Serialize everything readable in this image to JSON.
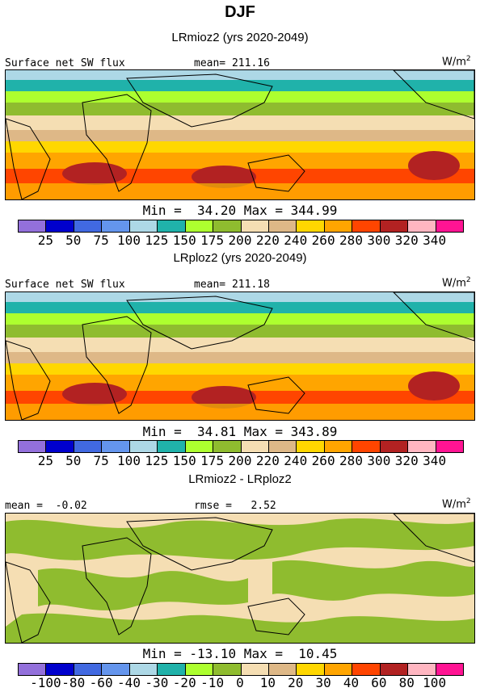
{
  "title": "DJF",
  "panels": [
    {
      "title": "LRmioz2 (yrs 2020-2049)",
      "label_left": "Surface net SW flux",
      "label_mid": "mean= 211.16",
      "unit": "W/m",
      "unit_exp": "2",
      "minmax": "Min =  34.20 Max = 344.99",
      "colorbar_ticks": [
        "25",
        "50",
        "75",
        "100",
        "125",
        "150",
        "175",
        "200",
        "220",
        "240",
        "260",
        "280",
        "300",
        "320",
        "340"
      ]
    },
    {
      "title": "LRploz2 (yrs 2020-2049)",
      "label_left": "Surface net SW flux",
      "label_mid": "mean= 211.18",
      "unit": "W/m",
      "unit_exp": "2",
      "minmax": "Min =  34.81 Max = 343.89",
      "colorbar_ticks": [
        "25",
        "50",
        "75",
        "100",
        "125",
        "150",
        "175",
        "200",
        "220",
        "240",
        "260",
        "280",
        "300",
        "320",
        "340"
      ]
    },
    {
      "title": "LRmioz2 - LRploz2",
      "label_left": "mean =  -0.02",
      "label_mid": "rmse =   2.52",
      "unit": "W/m",
      "unit_exp": "2",
      "minmax": "Min = -13.10 Max =  10.45",
      "colorbar_ticks": [
        "-100",
        "-80",
        "-60",
        "-40",
        "-30",
        "-20",
        "-10",
        "0",
        "10",
        "20",
        "30",
        "40",
        "60",
        "80",
        "100"
      ]
    }
  ],
  "colors": {
    "palette": [
      "#9370db",
      "#0000cd",
      "#4169e1",
      "#6495ed",
      "#add8e6",
      "#20b2aa",
      "#adff2f",
      "#8fbc2f",
      "#f5deb3",
      "#deb887",
      "#ffd700",
      "#ffa500",
      "#ff4500",
      "#b22222",
      "#ffb6c1",
      "#ff1493"
    ],
    "land_outline": "#000000"
  }
}
